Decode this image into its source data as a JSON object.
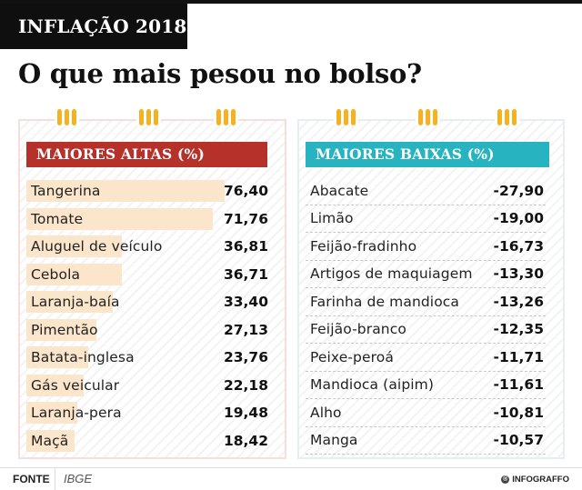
{
  "header": {
    "tag": "INFLAÇÃO 2018",
    "title": "O que mais pesou no bolso?"
  },
  "chart_data": [
    {
      "type": "bar",
      "title": "MAIORES ALTAS (%)",
      "color": "#b5312a",
      "bar_color": "#fbe6cc",
      "categories": [
        "Tangerina",
        "Tomate",
        "Aluguel de veículo",
        "Cebola",
        "Laranja-baía",
        "Pimentão",
        "Batata-inglesa",
        "Gás veicular",
        "Laranja-pera",
        "Maçã"
      ],
      "values": [
        76.4,
        71.76,
        36.81,
        36.71,
        33.4,
        27.13,
        23.76,
        22.18,
        19.48,
        18.42
      ],
      "labels": [
        "76,40",
        "71,76",
        "36,81",
        "36,71",
        "33,40",
        "27,13",
        "23,76",
        "22,18",
        "19,48",
        "18,42"
      ],
      "unit": "%"
    },
    {
      "type": "table",
      "title": "MAIORES BAIXAS (%)",
      "color": "#28b3c0",
      "categories": [
        "Abacate",
        "Limão",
        "Feijão-fradinho",
        "Artigos de maquiagem",
        "Farinha de mandioca",
        "Feijão-branco",
        "Peixe-peroá",
        "Mandioca (aipim)",
        "Alho",
        "Manga"
      ],
      "values": [
        -27.9,
        -19.0,
        -16.73,
        -13.3,
        -13.26,
        -12.35,
        -11.71,
        -11.61,
        -10.81,
        -10.57
      ],
      "labels": [
        "-27,90",
        "-19,00",
        "-16,73",
        "-13,30",
        "-13,26",
        "-12,35",
        "-11,71",
        "-11,61",
        "-10,81",
        "-10,57"
      ],
      "unit": "%"
    }
  ],
  "footer": {
    "source_label": "FONTE",
    "source": "IBGE",
    "brand": "INFOGRAFFO",
    "brand_icon": "infograffo-logo-icon"
  }
}
